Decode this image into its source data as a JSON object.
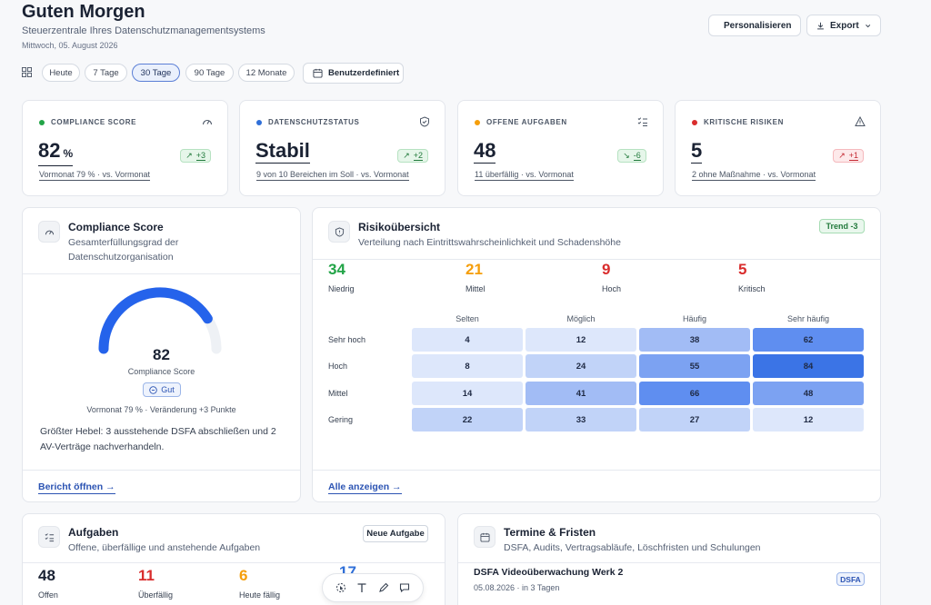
{
  "header": {
    "greeting": "Guten Morgen",
    "subtitle": "Steuerzentrale Ihres Datenschutzmanagementsystems",
    "date": "Mittwoch, 05. August 2026",
    "personalize_label": "Personalisieren",
    "export_label": "Export"
  },
  "periods": {
    "items": [
      "Heute",
      "7 Tage",
      "30 Tage",
      "90 Tage",
      "12 Monate"
    ],
    "selected": "30 Tage",
    "custom_label": "Benutzerdefiniert"
  },
  "kpis": [
    {
      "label": "COMPLIANCE SCORE",
      "value": "82",
      "unit": "%",
      "badge": "+3",
      "foot": "Vormonat 79 % · vs. Vormonat",
      "dot_color": "#22a447",
      "icon": "gauge-icon",
      "badge_style": "green"
    },
    {
      "label": "DATENSCHUTZSTATUS",
      "value": "Stabil",
      "unit": "",
      "badge": "+2",
      "foot": "9 von 10 Bereichen im Soll · vs. Vormonat",
      "dot_color": "#2f6fd8",
      "icon": "shield-icon",
      "badge_style": "green"
    },
    {
      "label": "OFFENE AUFGABEN",
      "value": "48",
      "unit": "",
      "badge": "-6",
      "foot": "11 überfällig · vs. Vormonat",
      "dot_color": "#f59e0b",
      "icon": "checklist-icon",
      "badge_style": "green"
    },
    {
      "label": "KRITISCHE RISIKEN",
      "value": "5",
      "unit": "",
      "badge": "+1",
      "foot": "2 ohne Maßnahme · vs. Vormonat",
      "dot_color": "#d92d2d",
      "icon": "warning-icon",
      "badge_style": "red"
    }
  ],
  "compliance": {
    "title": "Compliance Score",
    "subtitle": "Gesamterfüllungsgrad der Datenschutzorganisation",
    "score": "82",
    "score_fraction": 0.82,
    "score_label": "Compliance Score",
    "rating": "Gut",
    "note": "Vormonat 79 % · Veränderung +3 Punkte",
    "text": "Größter Hebel: 3 ausstehende DSFA abschließen und 2 AV-Verträge nachverhandeln.",
    "link": "Bericht öffnen →",
    "accent": "#2563eb"
  },
  "risk": {
    "title": "Risikoübersicht",
    "subtitle": "Verteilung nach Eintrittswahrscheinlichkeit und Schadenshöhe",
    "trend": "Trend -3",
    "counts": [
      {
        "value": "34",
        "label": "Niedrig",
        "color": "#22a447"
      },
      {
        "value": "21",
        "label": "Mittel",
        "color": "#f59e0b"
      },
      {
        "value": "9",
        "label": "Hoch",
        "color": "#d92d2d"
      },
      {
        "value": "5",
        "label": "Kritisch",
        "color": "#d92d2d"
      }
    ],
    "columns": [
      "Selten",
      "Möglich",
      "Häufig",
      "Sehr häufig"
    ],
    "rows": [
      {
        "label": "Sehr hoch",
        "values": [
          "4",
          "12",
          "38",
          "62"
        ]
      },
      {
        "label": "Hoch",
        "values": [
          "8",
          "24",
          "55",
          "84"
        ]
      },
      {
        "label": "Mittel",
        "values": [
          "14",
          "41",
          "66",
          "48"
        ]
      },
      {
        "label": "Gering",
        "values": [
          "22",
          "33",
          "27",
          "12"
        ]
      }
    ],
    "link": "Alle anzeigen →"
  },
  "tasks": {
    "title": "Aufgaben",
    "subtitle": "Offene, überfällige und anstehende Aufgaben",
    "new_label": "Neue Aufgabe",
    "stats": [
      {
        "value": "48",
        "label": "Offen",
        "color": "#1a2233"
      },
      {
        "value": "11",
        "label": "Überfällig",
        "color": "#d92d2d"
      },
      {
        "value": "6",
        "label": "Heute fällig",
        "color": "#f59e0b"
      },
      {
        "value": "17",
        "label": "",
        "color": "#2f6fd8"
      }
    ]
  },
  "events": {
    "title": "Termine & Fristen",
    "subtitle": "DSFA, Audits, Vertragsabläufe, Löschfristen und Schulungen",
    "items": [
      {
        "title": "DSFA Videoüberwachung Werk 2",
        "meta": "05.08.2026 · in 3 Tagen",
        "tag": "DSFA"
      }
    ]
  },
  "toolbar": {
    "tools": [
      "select-icon",
      "text-icon",
      "pen-icon",
      "comment-icon"
    ]
  }
}
